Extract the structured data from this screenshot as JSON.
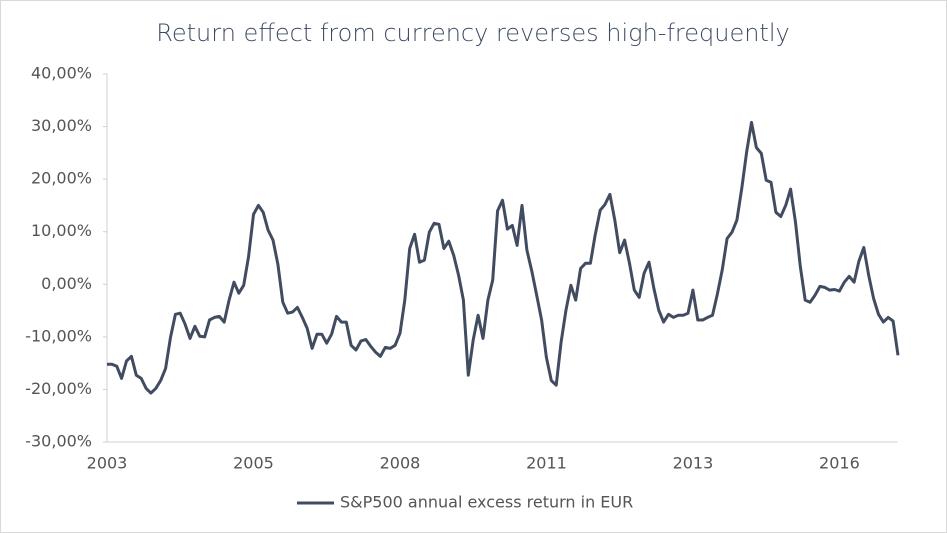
{
  "chart_data": {
    "type": "line",
    "title": "Return effect from currency reverses high-frequently",
    "categories": [
      "2003",
      null,
      null,
      null,
      null,
      null,
      null,
      null,
      null,
      null,
      null,
      null,
      null,
      null,
      null,
      null,
      null,
      null,
      null,
      null,
      null,
      null,
      null,
      null,
      null,
      null,
      null,
      null,
      null,
      null,
      "2005",
      null,
      null,
      null,
      null,
      null,
      null,
      null,
      null,
      null,
      null,
      null,
      null,
      null,
      null,
      null,
      null,
      null,
      null,
      null,
      null,
      null,
      null,
      null,
      null,
      null,
      null,
      null,
      null,
      null,
      "2008",
      null,
      null,
      null,
      null,
      null,
      null,
      null,
      null,
      null,
      null,
      null,
      null,
      null,
      null,
      null,
      null,
      null,
      null,
      null,
      null,
      null,
      null,
      null,
      null,
      null,
      null,
      null,
      null,
      null,
      "2011",
      null,
      null,
      null,
      null,
      null,
      null,
      null,
      null,
      null,
      null,
      null,
      null,
      null,
      null,
      null,
      null,
      null,
      null,
      null,
      null,
      null,
      null,
      null,
      null,
      null,
      null,
      null,
      null,
      null,
      "2013",
      null,
      null,
      null,
      null,
      null,
      null,
      null,
      null,
      null,
      null,
      null,
      null,
      null,
      null,
      null,
      null,
      null,
      null,
      null,
      null,
      null,
      null,
      null,
      null,
      null,
      null,
      null,
      null,
      null,
      "2016",
      null,
      null,
      null,
      null,
      null,
      null,
      null,
      null,
      null,
      null,
      null,
      null
    ],
    "series": [
      {
        "name": "S&P500 annual excess return in EUR",
        "color": "#414c61",
        "values": [
          -15.2,
          -15.2,
          -15.6,
          -17.9,
          -14.6,
          -13.7,
          -17.3,
          -17.9,
          -19.8,
          -20.7,
          -19.8,
          -18.3,
          -16,
          -10.1,
          -5.7,
          -5.5,
          -7.6,
          -10.3,
          -8,
          -9.9,
          -10,
          -6.8,
          -6.3,
          -6.1,
          -7.2,
          -3,
          0.4,
          -1.7,
          -0.2,
          5.3,
          13.3,
          15,
          13.7,
          10.3,
          8.4,
          3.8,
          -3.4,
          -5.5,
          -5.3,
          -4.4,
          -6.3,
          -8.4,
          -12.2,
          -9.5,
          -9.5,
          -11.2,
          -9.5,
          -6.1,
          -7.2,
          -7.2,
          -11.6,
          -12.5,
          -10.8,
          -10.5,
          -11.8,
          -12.9,
          -13.7,
          -12,
          -12.2,
          -11.6,
          -9.3,
          -3,
          6.8,
          9.5,
          4.2,
          4.6,
          9.9,
          11.6,
          11.4,
          6.8,
          8.2,
          5.5,
          1.7,
          -3,
          -17.3,
          -10.6,
          -5.9,
          -10.3,
          -3,
          0.8,
          14,
          16,
          10.5,
          11.2,
          7.4,
          15,
          6.5,
          2.5,
          -2.1,
          -6.8,
          -13.9,
          -18.3,
          -19.2,
          -11,
          -4.9,
          -0.2,
          -3,
          3,
          4,
          4,
          9.5,
          14.1,
          15.2,
          17.1,
          12.2,
          6,
          8.4,
          4,
          -1.1,
          -2.5,
          2.1,
          4.2,
          -0.8,
          -4.9,
          -7.2,
          -5.7,
          -6.3,
          -5.9,
          -5.9,
          -5.5,
          -1.1,
          -6.8,
          -6.8,
          -6.3,
          -5.9,
          -1.9,
          2.7,
          8.7,
          9.9,
          12.2,
          18.3,
          25.1,
          30.8,
          26,
          24.9,
          19.8,
          19.4,
          13.7,
          12.9,
          15,
          18.1,
          11.8,
          3.4,
          -3,
          -3.4,
          -2.1,
          -0.4,
          -0.6,
          -1.1,
          -1,
          -1.3,
          0.4,
          1.5,
          0.4,
          4.4,
          7,
          1.7,
          -2.7,
          -5.7,
          -7.2,
          -6.3,
          -7,
          -13.5
        ]
      }
    ],
    "ylim": [
      -30,
      40
    ],
    "yticks": [
      {
        "value": -30,
        "label": "-30,00%"
      },
      {
        "value": -20,
        "label": "-20,00%"
      },
      {
        "value": -10,
        "label": "-10,00%"
      },
      {
        "value": 0,
        "label": "0,00%"
      },
      {
        "value": 10,
        "label": "10,00%"
      },
      {
        "value": 20,
        "label": "20,00%"
      },
      {
        "value": 30,
        "label": "30,00%"
      },
      {
        "value": 40,
        "label": "40,00%"
      }
    ],
    "grid": false,
    "legend": "bottom"
  }
}
